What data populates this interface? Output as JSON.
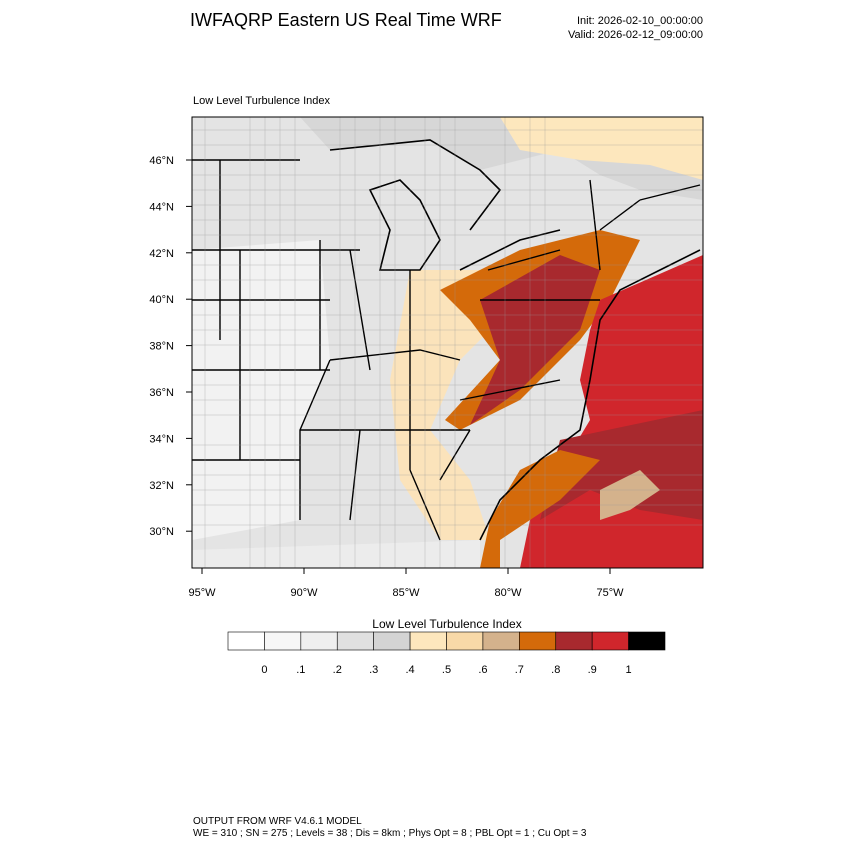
{
  "header": {
    "title": "IWFAQRP Eastern US Real Time WRF",
    "init": "Init: 2026-02-10_00:00:00",
    "valid": "Valid: 2026-02-12_09:00:00"
  },
  "map": {
    "title": "Low Level Turbulence Index",
    "lat_labels": [
      "46°N",
      "44°N",
      "42°N",
      "40°N",
      "38°N",
      "36°N",
      "34°N",
      "32°N",
      "30°N"
    ],
    "lon_labels": [
      "95°W",
      "90°W",
      "85°W",
      "80°W",
      "75°W"
    ]
  },
  "colorbar": {
    "title": "Low Level Turbulence Index",
    "colors": [
      "#ffffff",
      "#f7f7f7",
      "#efefef",
      "#e0e0e0",
      "#d4d4d4",
      "#fde7bd",
      "#f8d9a8",
      "#d4b28c",
      "#d46a0a",
      "#a8292e",
      "#d0262c",
      "#000000"
    ],
    "labels": [
      "0",
      ".1",
      ".2",
      ".3",
      ".4",
      ".5",
      ".6",
      ".7",
      ".8",
      ".9",
      "1"
    ]
  },
  "footer": {
    "line1": "OUTPUT FROM WRF V4.6.1 MODEL",
    "line2": "WE = 310 ; SN = 275 ; Levels = 38 ; Dis = 8km ; Phys Opt = 8 ; PBL Opt = 1 ; Cu Opt = 3"
  }
}
